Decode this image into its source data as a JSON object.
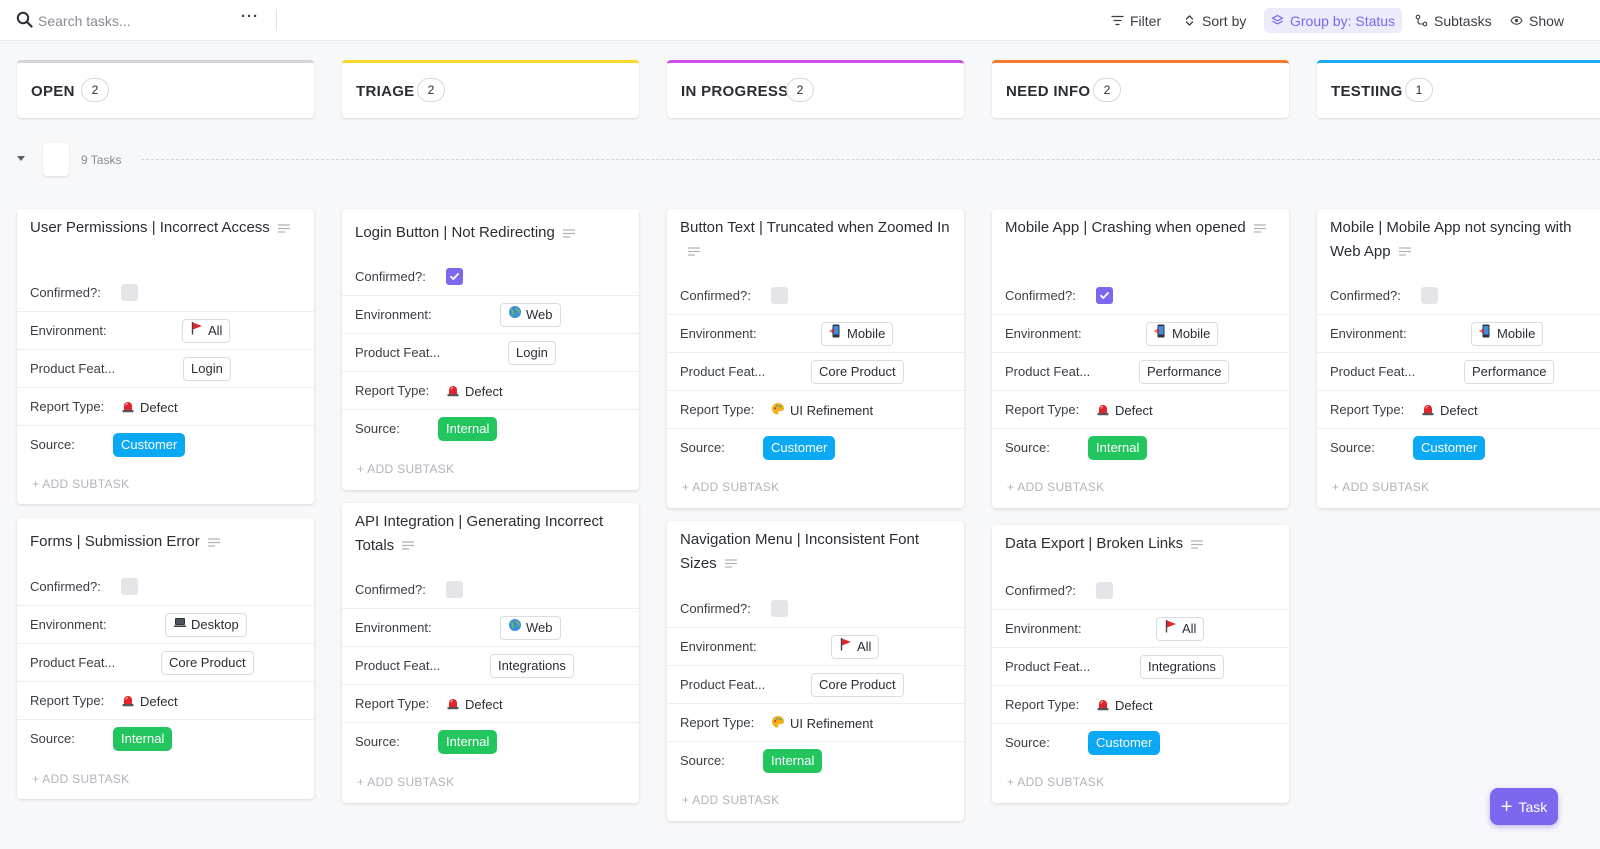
{
  "toolbar": {
    "search_placeholder": "Search tasks...",
    "more_label": "···",
    "filter_label": "Filter",
    "sort_label": "Sort by",
    "group_label": "Group by: Status",
    "subtasks_label": "Subtasks",
    "show_label": "Show"
  },
  "columns": [
    {
      "title": "OPEN",
      "count": "2",
      "color": "#d3d5d9"
    },
    {
      "title": "TRIAGE",
      "count": "2",
      "color": "#f8d92a"
    },
    {
      "title": "IN PROGRESS",
      "count": "2",
      "color": "#c94fe8"
    },
    {
      "title": "NEED INFO",
      "count": "2",
      "color": "#f4782d"
    },
    {
      "title": "TESTIING",
      "count": "1",
      "color": "#1baaf2"
    }
  ],
  "group": {
    "count_label": "9 Tasks"
  },
  "labels": {
    "confirmed": "Confirmed?:",
    "environment": "Environment:",
    "product_feature": "Product Feat...",
    "report_type": "Report Type:",
    "source": "Source:",
    "add_subtask": "+ ADD SUBTASK"
  },
  "cards": [
    {
      "title": "User Permissions | Incorrect Access",
      "confirmed": false,
      "environment": "All",
      "environment_icon": "red-flag-icon",
      "product_feature": "Login",
      "report_type": "Defect",
      "report_icon": "siren-icon",
      "source": "Customer"
    },
    {
      "title": "Forms | Submission Error",
      "confirmed": false,
      "environment": "Desktop",
      "environment_icon": "laptop-icon",
      "product_feature": "Core Product",
      "report_type": "Defect",
      "report_icon": "siren-icon",
      "source": "Internal"
    },
    {
      "title": "Login Button | Not Redirecting",
      "confirmed": true,
      "environment": "Web",
      "environment_icon": "globe-icon",
      "product_feature": "Login",
      "report_type": "Defect",
      "report_icon": "siren-icon",
      "source": "Internal"
    },
    {
      "title": "API Integration | Generating Incorrect Totals",
      "confirmed": false,
      "environment": "Web",
      "environment_icon": "globe-icon",
      "product_feature": "Integrations",
      "report_type": "Defect",
      "report_icon": "siren-icon",
      "source": "Internal"
    },
    {
      "title": "Button Text | Truncated when Zoomed In",
      "confirmed": false,
      "environment": "Mobile",
      "environment_icon": "mobile-phone-icon",
      "product_feature": "Core Product",
      "report_type": "UI Refinement",
      "report_icon": "palette-icon",
      "source": "Customer"
    },
    {
      "title": "Navigation Menu | Inconsistent Font Sizes",
      "confirmed": false,
      "environment": "All",
      "environment_icon": "red-flag-icon",
      "product_feature": "Core Product",
      "report_type": "UI Refinement",
      "report_icon": "palette-icon",
      "source": "Internal"
    },
    {
      "title": "Mobile App | Crashing when opened",
      "confirmed": true,
      "environment": "Mobile",
      "environment_icon": "mobile-phone-icon",
      "product_feature": "Performance",
      "report_type": "Defect",
      "report_icon": "siren-icon",
      "source": "Internal"
    },
    {
      "title": "Data Export | Broken Links",
      "confirmed": false,
      "environment": "All",
      "environment_icon": "red-flag-icon",
      "product_feature": "Integrations",
      "report_type": "Defect",
      "report_icon": "siren-icon",
      "source": "Customer"
    },
    {
      "title": "Mobile | Mobile App not syncing with Web App",
      "confirmed": false,
      "environment": "Mobile",
      "environment_icon": "mobile-phone-icon",
      "product_feature": "Performance",
      "report_type": "Defect",
      "report_icon": "siren-icon",
      "source": "Customer"
    }
  ],
  "task_button": {
    "label": "Task",
    "plus": "+"
  }
}
